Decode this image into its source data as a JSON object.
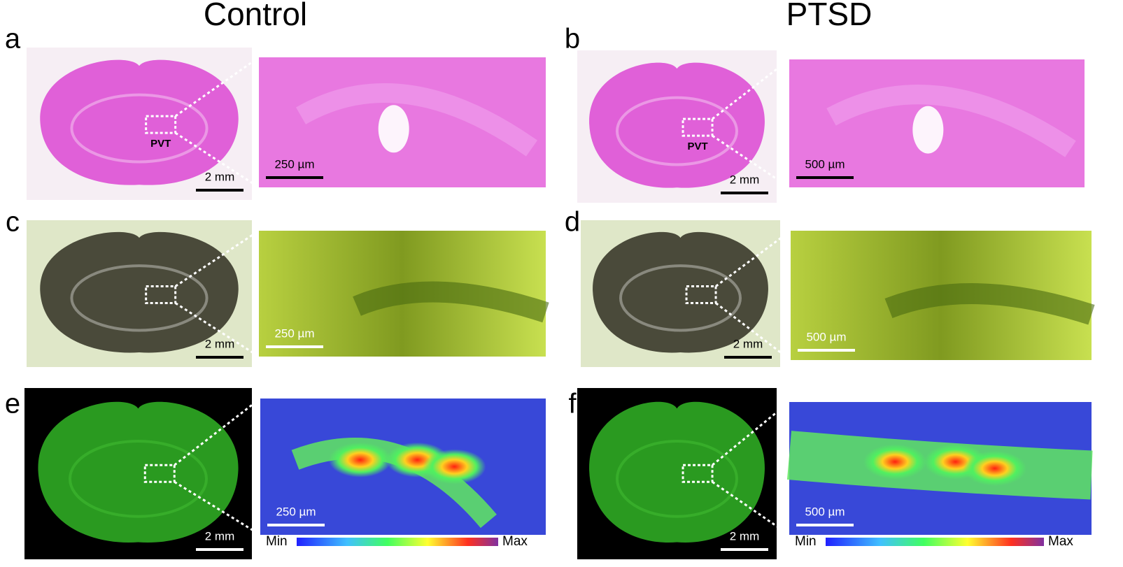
{
  "columns": {
    "left": "Control",
    "right": "PTSD"
  },
  "panels": [
    {
      "letter": "a",
      "overview_scale": "2 mm",
      "zoom_scale": "250 µm",
      "region": "PVT"
    },
    {
      "letter": "b",
      "overview_scale": "2 mm",
      "zoom_scale": "500 µm",
      "region": "PVT"
    },
    {
      "letter": "c",
      "overview_scale": "2 mm",
      "zoom_scale": "250 µm"
    },
    {
      "letter": "d",
      "overview_scale": "2 mm",
      "zoom_scale": "500 µm"
    },
    {
      "letter": "e",
      "overview_scale": "2 mm",
      "zoom_scale": "250 µm",
      "colorbar": {
        "min": "Min",
        "max": "Max"
      }
    },
    {
      "letter": "f",
      "overview_scale": "2 mm",
      "zoom_scale": "500 µm",
      "colorbar": {
        "min": "Min",
        "max": "Max"
      }
    }
  ]
}
